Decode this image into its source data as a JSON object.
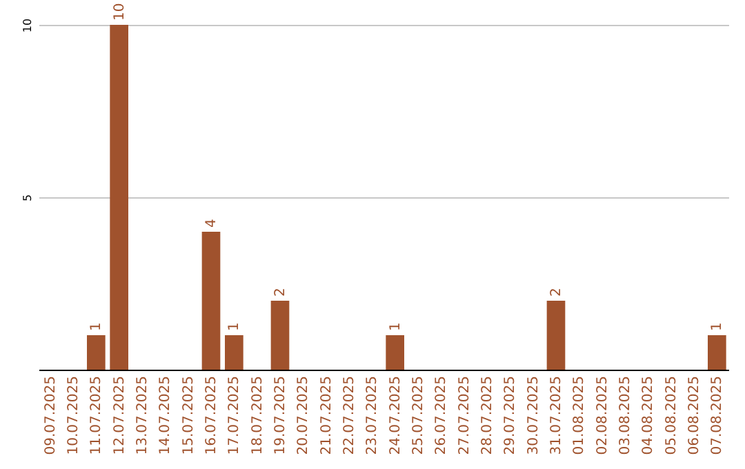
{
  "chart_data": {
    "type": "bar",
    "categories": [
      "09.07.2025",
      "10.07.2025",
      "11.07.2025",
      "12.07.2025",
      "13.07.2025",
      "14.07.2025",
      "15.07.2025",
      "16.07.2025",
      "17.07.2025",
      "18.07.2025",
      "19.07.2025",
      "20.07.2025",
      "21.07.2025",
      "22.07.2025",
      "23.07.2025",
      "24.07.2025",
      "25.07.2025",
      "26.07.2025",
      "27.07.2025",
      "28.07.2025",
      "29.07.2025",
      "30.07.2025",
      "31.07.2025",
      "01.08.2025",
      "02.08.2025",
      "03.08.2025",
      "04.08.2025",
      "05.08.2025",
      "06.08.2025",
      "07.08.2025"
    ],
    "values": [
      0,
      0,
      1,
      10,
      0,
      0,
      0,
      4,
      1,
      0,
      2,
      0,
      0,
      0,
      0,
      1,
      0,
      0,
      0,
      0,
      0,
      0,
      2,
      0,
      0,
      0,
      0,
      0,
      0,
      1
    ],
    "value_labels": [
      null,
      null,
      "1",
      "10",
      null,
      null,
      null,
      "4",
      "1",
      null,
      "2",
      null,
      null,
      null,
      null,
      "1",
      null,
      null,
      null,
      null,
      null,
      null,
      "2",
      null,
      null,
      null,
      null,
      null,
      null,
      "1"
    ],
    "color": "#a0522d",
    "ylim": [
      0,
      10
    ],
    "yticks": [
      5,
      10
    ],
    "grid": "y"
  }
}
